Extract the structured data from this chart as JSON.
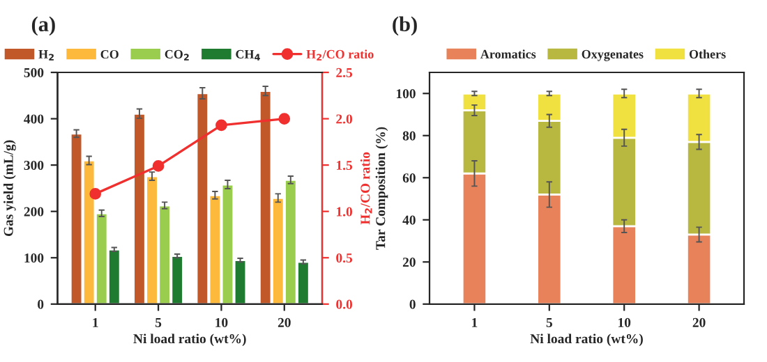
{
  "chart_data": [
    {
      "type": "bar",
      "title": "(a)",
      "xlabel": "Ni load ratio (wt%)",
      "ylabel": "Gas yield (mL/g)",
      "y2label": "H$_{2}$/CO ratio",
      "categories": [
        "1",
        "5",
        "10",
        "20"
      ],
      "series": [
        {
          "name": "H$_{2}$",
          "color": "#c0582a",
          "values": [
            368,
            411,
            455,
            460
          ],
          "errors": [
            8,
            10,
            12,
            10
          ]
        },
        {
          "name": "CO",
          "color": "#fdb93c",
          "values": [
            310,
            276,
            235,
            229
          ],
          "errors": [
            9,
            9,
            8,
            9
          ]
        },
        {
          "name": "CO$_{2}$",
          "color": "#9acd4e",
          "values": [
            196,
            213,
            258,
            268
          ],
          "errors": [
            7,
            7,
            9,
            8
          ]
        },
        {
          "name": "CH$_{4}$",
          "color": "#1e7b30",
          "values": [
            118,
            104,
            95,
            91
          ],
          "errors": [
            4,
            4,
            4,
            4
          ]
        },
        {
          "name": "H$_{2}$/CO ratio",
          "type": "line",
          "axis": "y2",
          "color": "#f0302e",
          "values": [
            1.19,
            1.49,
            1.93,
            2.0
          ],
          "marker": "circle"
        }
      ],
      "ylim": [
        0,
        500
      ],
      "yticks": [
        0,
        100,
        200,
        300,
        400,
        500
      ],
      "y2lim": [
        0,
        2.5
      ],
      "y2ticks": [
        {
          "value": 0,
          "label": "0.0"
        },
        {
          "value": 0.5,
          "label": "0.5"
        },
        {
          "value": 1,
          "label": "1.0"
        },
        {
          "value": 1.5,
          "label": "1.5"
        },
        {
          "value": 2,
          "label": "2.0"
        },
        {
          "value": 2.5,
          "label": "2.5"
        }
      ],
      "legend": "top",
      "grid": false
    },
    {
      "type": "bar",
      "stacked": true,
      "title": "(b)",
      "xlabel": "Ni load ratio (wt%)",
      "ylabel": "Tar Composition (%)",
      "categories": [
        "1",
        "5",
        "10",
        "20"
      ],
      "series": [
        {
          "name": "Aromatics",
          "color": "#e8825a",
          "values": [
            62,
            52,
            37,
            33
          ],
          "errors": [
            6,
            6,
            3,
            3.5
          ]
        },
        {
          "name": "Oxygenates",
          "color": "#b8b840",
          "values": [
            30,
            35,
            42,
            44
          ],
          "errors": [
            2.5,
            3,
            4,
            3.5
          ]
        },
        {
          "name": "Others",
          "color": "#f0e040",
          "values": [
            8,
            13,
            21,
            23
          ],
          "errors": [
            1,
            1,
            2,
            2
          ]
        }
      ],
      "ylim": [
        0,
        110
      ],
      "yticks": [
        0,
        20,
        40,
        60,
        80,
        100
      ],
      "legend": "top",
      "grid": false
    }
  ]
}
